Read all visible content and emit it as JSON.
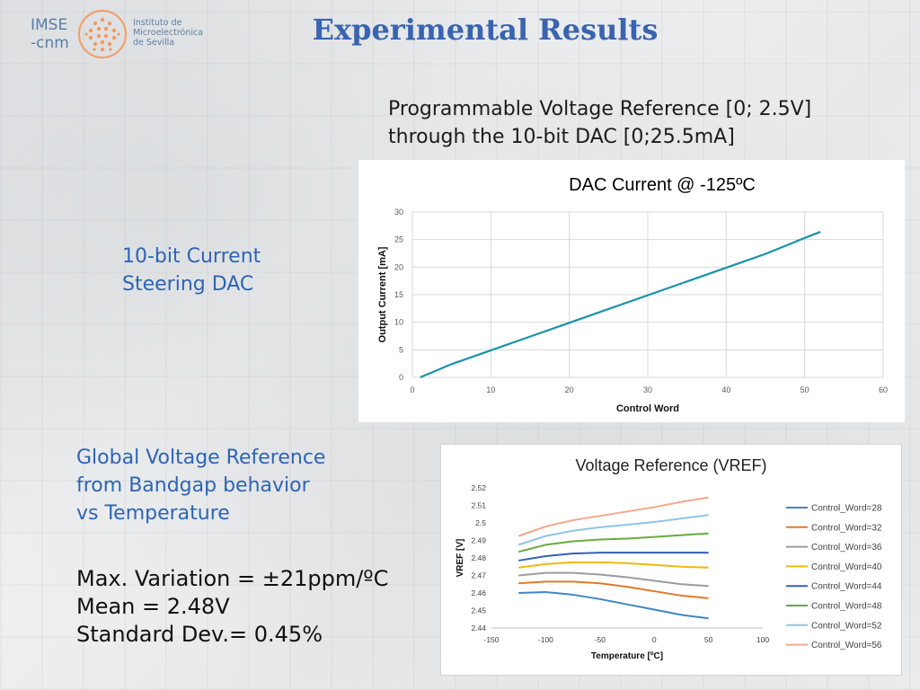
{
  "header": {
    "logo": {
      "text_line1": "IMSE",
      "text_line2": "-cnm",
      "sub_line1": "Instituto de",
      "sub_line2": "Microelectrónica",
      "sub_line3": "de Sevilla"
    },
    "title": "Experimental Results"
  },
  "texts": {
    "top_right": [
      "Programmable Voltage Reference [0; 2.5V]",
      "through the 10-bit DAC [0;25.5mA]"
    ],
    "dac_label": [
      "10-bit Current",
      "Steering DAC"
    ],
    "global_label": [
      "Global Voltage Reference",
      "from Bandgap behavior",
      "vs Temperature"
    ],
    "stats": [
      "Max. Variation = ±21ppm/ºC",
      "Mean = 2.48V",
      "Standard Dev.= 0.45%"
    ]
  },
  "chart_data": [
    {
      "type": "line",
      "title": "DAC Current @ -125ºC",
      "xlabel": "Control Word",
      "ylabel": "Output Current [mA]",
      "xlim": [
        0,
        60
      ],
      "ylim": [
        0,
        30
      ],
      "xticks": [
        0,
        10,
        20,
        30,
        40,
        50,
        60
      ],
      "yticks": [
        0,
        5,
        10,
        15,
        20,
        25,
        30
      ],
      "grid": true,
      "line_color": "#1a93a8",
      "series": [
        {
          "x": [
            1,
            5,
            10,
            15,
            20,
            25,
            30,
            35,
            40,
            45,
            50,
            52
          ],
          "y": [
            0,
            2.4,
            4.9,
            7.4,
            9.9,
            12.4,
            14.9,
            17.4,
            19.9,
            22.4,
            25.3,
            26.4
          ]
        }
      ]
    },
    {
      "type": "line",
      "title": "Voltage Reference (VREF)",
      "xlabel": "Temperature [ºC]",
      "ylabel": "VREF [V]",
      "xlim": [
        -150,
        100
      ],
      "ylim": [
        2.44,
        2.52
      ],
      "xticks": [
        -150,
        -100,
        -50,
        0,
        50,
        100
      ],
      "yticks": [
        2.44,
        2.45,
        2.46,
        2.47,
        2.48,
        2.49,
        2.5,
        2.51,
        2.52
      ],
      "grid": false,
      "legend": "right",
      "x": [
        -125,
        -100,
        -75,
        -50,
        -25,
        0,
        25,
        50
      ],
      "series": [
        {
          "name": "Control_Word=28",
          "color": "#3f86c6",
          "values": [
            2.46,
            2.4605,
            2.459,
            2.4565,
            2.4535,
            2.4505,
            2.4475,
            2.4455
          ]
        },
        {
          "name": "Control_Word=32",
          "color": "#e07a2c",
          "values": [
            2.4655,
            2.4665,
            2.4665,
            2.4655,
            2.4635,
            2.461,
            2.4585,
            2.457
          ]
        },
        {
          "name": "Control_Word=36",
          "color": "#9c9c9c",
          "values": [
            2.47,
            2.4715,
            2.4715,
            2.4705,
            2.469,
            2.467,
            2.465,
            2.464
          ]
        },
        {
          "name": "Control_Word=40",
          "color": "#f1b90e",
          "values": [
            2.4745,
            2.4765,
            2.4775,
            2.4775,
            2.477,
            2.476,
            2.475,
            2.4745
          ]
        },
        {
          "name": "Control_Word=44",
          "color": "#3460b0",
          "values": [
            2.4785,
            2.481,
            2.4825,
            2.483,
            2.483,
            2.483,
            2.483,
            2.483
          ]
        },
        {
          "name": "Control_Word=48",
          "color": "#66ad40",
          "values": [
            2.4835,
            2.4875,
            2.4895,
            2.4905,
            2.491,
            2.492,
            2.493,
            2.494
          ]
        },
        {
          "name": "Control_Word=52",
          "color": "#8ec5e8",
          "values": [
            2.4875,
            2.4925,
            2.4955,
            2.4975,
            2.499,
            2.5005,
            2.5025,
            2.5045
          ]
        },
        {
          "name": "Control_Word=56",
          "color": "#f4a98c",
          "values": [
            2.4925,
            2.498,
            2.5015,
            2.504,
            2.5065,
            2.509,
            2.512,
            2.5145
          ]
        }
      ]
    }
  ]
}
